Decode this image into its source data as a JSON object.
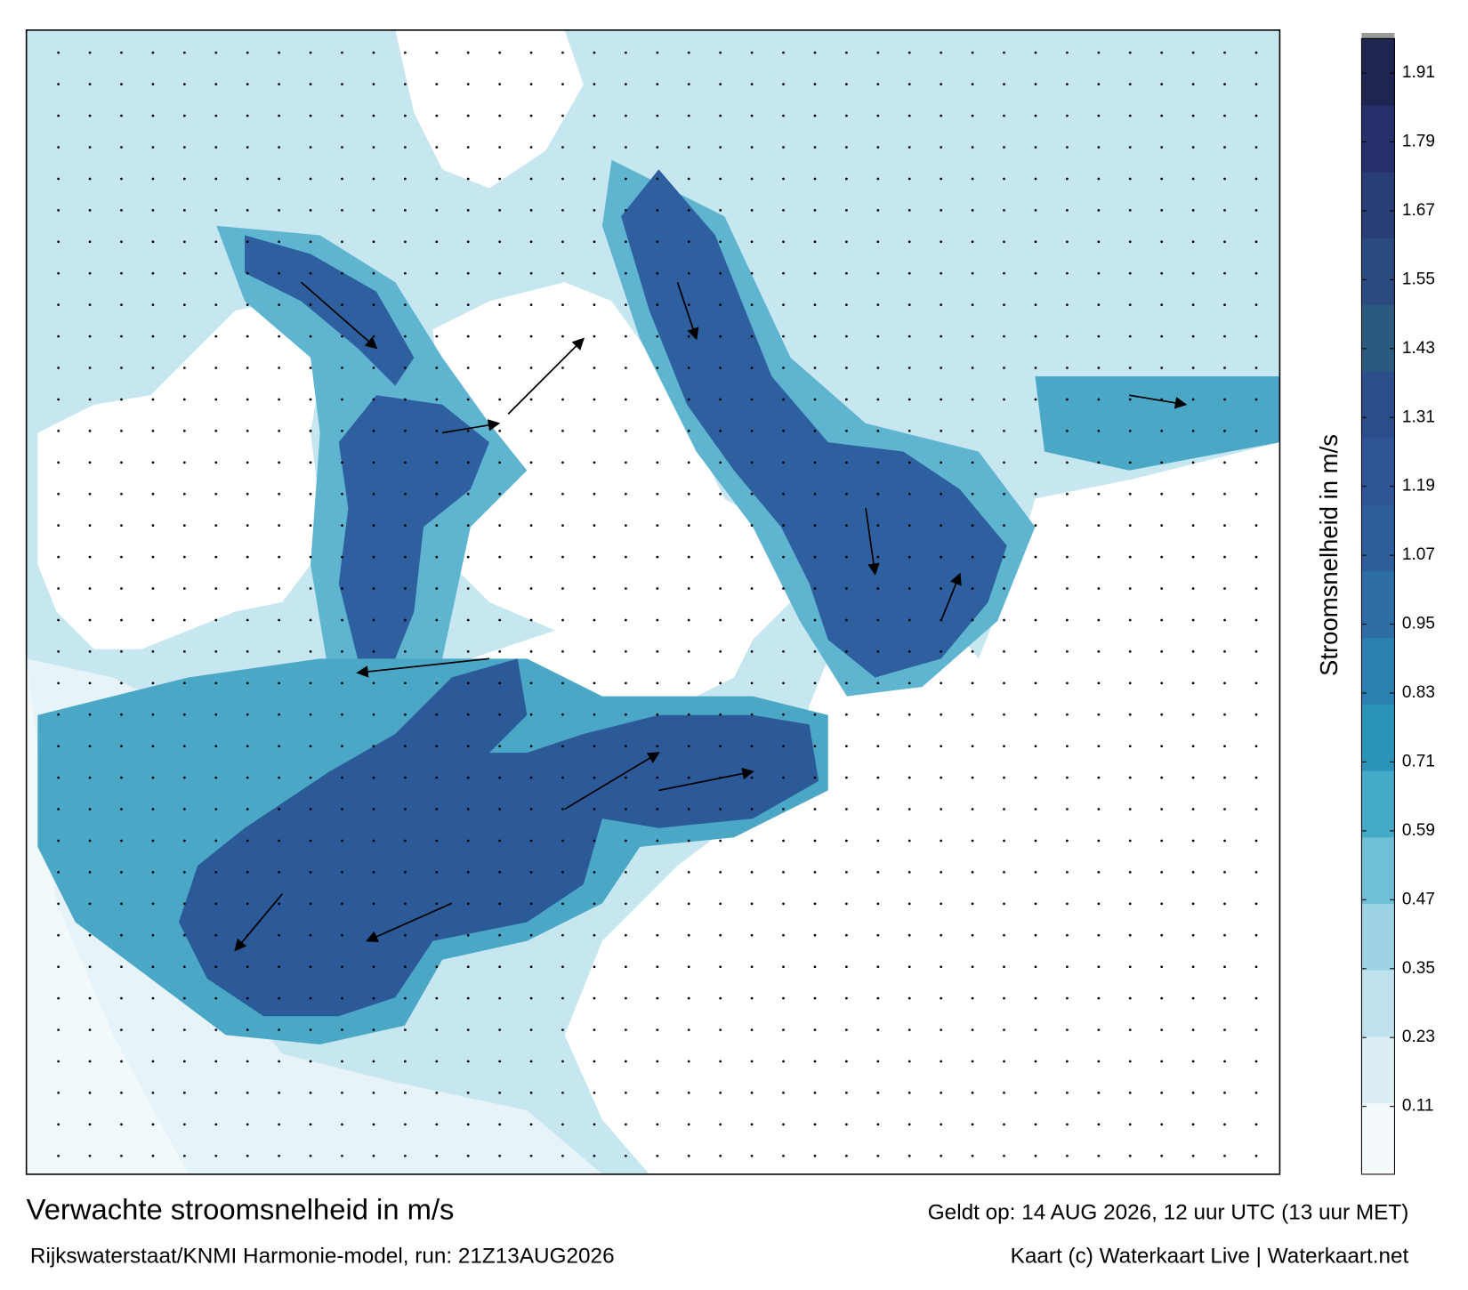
{
  "map": {
    "title": "Verwachte stroomsnelheid in m/s",
    "valid": "Geldt op: 14 AUG 2026, 12 uur UTC (13 uur MET)",
    "source": "Rijkswaterstaat/KNMI Harmonie-model, run: 21Z13AUG2026",
    "credit": "Kaart (c) Waterkaart Live | Waterkaart.net",
    "colorbar": {
      "label": "Stroomsnelheid in m/s",
      "lim": [
        0,
        1.97
      ],
      "ticks": [
        0.11,
        0.23,
        0.35,
        0.47,
        0.59,
        0.71,
        0.83,
        0.95,
        1.07,
        1.19,
        1.31,
        1.43,
        1.55,
        1.67,
        1.79,
        1.91
      ],
      "colors": [
        "#f4fafc",
        "#dceef4",
        "#bfe3ee",
        "#9dd3e4",
        "#6fbfd6",
        "#45a9c8",
        "#2a93ba",
        "#2a80b0",
        "#2c6ea5",
        "#2e5d9c",
        "#2f5596",
        "#2c4d8c",
        "#2a5a7e",
        "#2b4a80",
        "#293d76",
        "#25306a",
        "#1e2550"
      ]
    }
  }
}
